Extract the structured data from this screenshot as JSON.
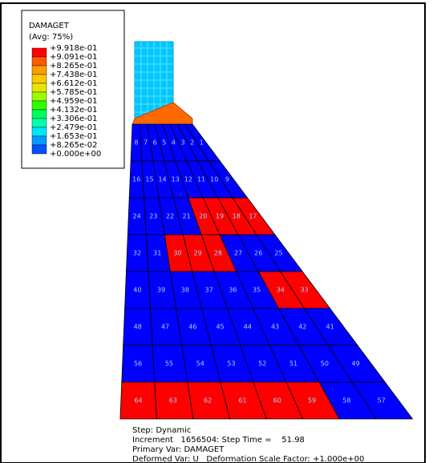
{
  "legend": {
    "title": "DAMAGET",
    "subtitle": "(Avg: 75%)",
    "labels": [
      "+9.918e-01",
      "+9.091e-01",
      "+8.265e-01",
      "+7.438e-01",
      "+6.612e-01",
      "+5.785e-01",
      "+4.959e-01",
      "+4.132e-01",
      "+3.306e-01",
      "+2.479e-01",
      "+1.653e-01",
      "+8.265e-02",
      "+0.000e+00"
    ],
    "colors": [
      "#ff0000",
      "#ff5a00",
      "#ff9c00",
      "#ffc800",
      "#e6e600",
      "#9cff00",
      "#2dff00",
      "#00ff5a",
      "#00ffb0",
      "#00e6ff",
      "#009cff",
      "#0050ff",
      "#0000ff"
    ]
  },
  "mesh": {
    "rows": [
      [
        {
          "label": "8",
          "color": "#0000ff"
        },
        {
          "label": "7",
          "color": "#0000ff"
        },
        {
          "label": "6",
          "color": "#0000ff"
        },
        {
          "label": "5",
          "color": "#0000ff"
        },
        {
          "label": "4",
          "color": "#0000ff"
        },
        {
          "label": "3",
          "color": "#0000ff"
        },
        {
          "label": "2",
          "color": "#0000ff"
        },
        {
          "label": "1",
          "color": "#0000ff"
        }
      ],
      [
        {
          "label": "16",
          "color": "#0000ff"
        },
        {
          "label": "15",
          "color": "#0000ff"
        },
        {
          "label": "14",
          "color": "#0000ff"
        },
        {
          "label": "13",
          "color": "#0000ff"
        },
        {
          "label": "12",
          "color": "#0000ff"
        },
        {
          "label": "11",
          "color": "#0000ff"
        },
        {
          "label": "10",
          "color": "#0000ff"
        },
        {
          "label": "9",
          "color": "#0000ff"
        }
      ],
      [
        {
          "label": "24",
          "color": "#0000ff"
        },
        {
          "label": "23",
          "color": "#0000ff"
        },
        {
          "label": "22",
          "color": "#0000ff"
        },
        {
          "label": "21",
          "color": "#0000ff"
        },
        {
          "label": "20",
          "color": "#ff0000"
        },
        {
          "label": "19",
          "color": "#ff0000"
        },
        {
          "label": "18",
          "color": "#ff0000"
        },
        {
          "label": "17",
          "color": "#ff0000"
        }
      ],
      [
        {
          "label": "32",
          "color": "#0000ff"
        },
        {
          "label": "31",
          "color": "#0000ff"
        },
        {
          "label": "30",
          "color": "#ff0000"
        },
        {
          "label": "29",
          "color": "#ff0000"
        },
        {
          "label": "28",
          "color": "#ff0000"
        },
        {
          "label": "27",
          "color": "#0000ff"
        },
        {
          "label": "26",
          "color": "#0000ff"
        },
        {
          "label": "25",
          "color": "#0000ff"
        }
      ],
      [
        {
          "label": "40",
          "color": "#0000ff"
        },
        {
          "label": "39",
          "color": "#0000ff"
        },
        {
          "label": "38",
          "color": "#0000ff"
        },
        {
          "label": "37",
          "color": "#0000ff"
        },
        {
          "label": "36",
          "color": "#0000ff"
        },
        {
          "label": "35",
          "color": "#0000ff"
        },
        {
          "label": "34",
          "color": "#ff0000"
        },
        {
          "label": "33",
          "color": "#ff0000"
        }
      ],
      [
        {
          "label": "48",
          "color": "#0000ff"
        },
        {
          "label": "47",
          "color": "#0000ff"
        },
        {
          "label": "46",
          "color": "#0000ff"
        },
        {
          "label": "45",
          "color": "#0000ff"
        },
        {
          "label": "44",
          "color": "#0000ff"
        },
        {
          "label": "43",
          "color": "#0000ff"
        },
        {
          "label": "42",
          "color": "#0000ff"
        },
        {
          "label": "41",
          "color": "#0000ff"
        }
      ],
      [
        {
          "label": "56",
          "color": "#0000ff"
        },
        {
          "label": "55",
          "color": "#0000ff"
        },
        {
          "label": "54",
          "color": "#0000ff"
        },
        {
          "label": "53",
          "color": "#0000ff"
        },
        {
          "label": "52",
          "color": "#0000ff"
        },
        {
          "label": "51",
          "color": "#0000ff"
        },
        {
          "label": "50",
          "color": "#0000ff"
        },
        {
          "label": "49",
          "color": "#0000ff"
        }
      ],
      [
        {
          "label": "64",
          "color": "#ff0000"
        },
        {
          "label": "63",
          "color": "#ff0000"
        },
        {
          "label": "62",
          "color": "#ff0000"
        },
        {
          "label": "61",
          "color": "#ff0000"
        },
        {
          "label": "60",
          "color": "#ff0000"
        },
        {
          "label": "59",
          "color": "#ff0000"
        },
        {
          "label": "58",
          "color": "#0000ff"
        },
        {
          "label": "57",
          "color": "#0000ff"
        }
      ]
    ]
  },
  "info": [
    "Step: Dynamic",
    "Increment   1656504: Step Time =    51.98",
    "Primary Var: DAMAGET",
    "Deformed Var: U   Deformation Scale Factor: +1.000e+00"
  ]
}
